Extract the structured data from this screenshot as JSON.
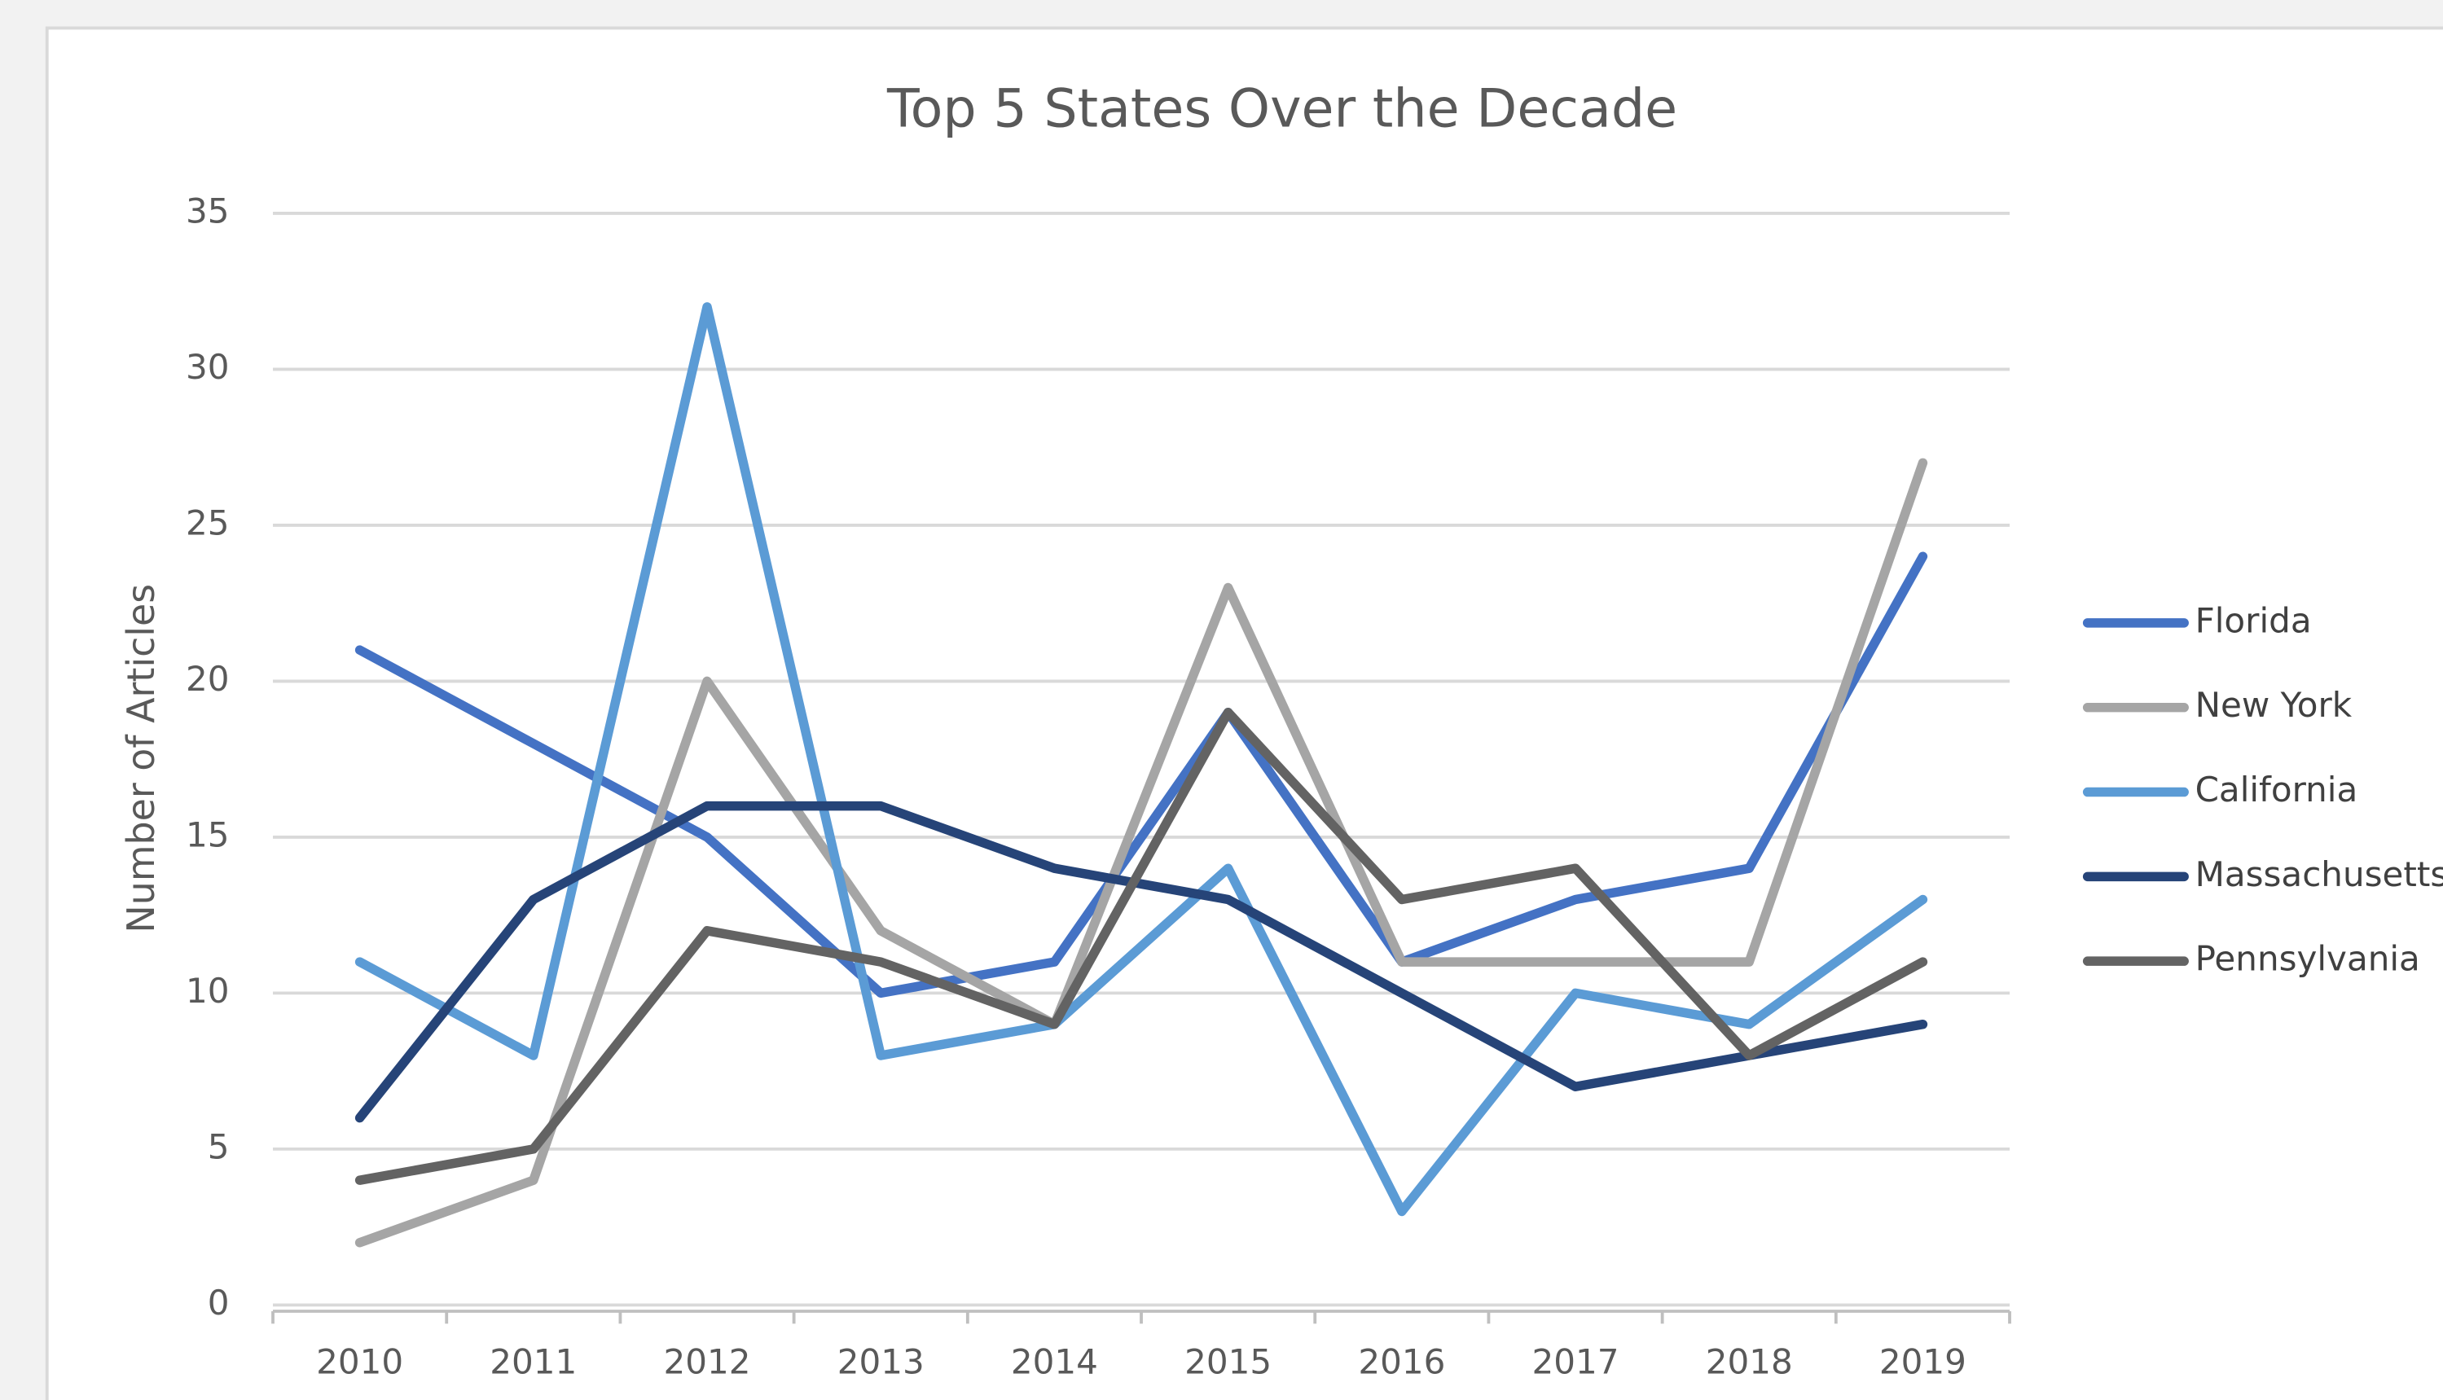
{
  "chart_data": {
    "type": "line",
    "title": "Top 5 States Over the Decade",
    "y_label": "Number of Articles",
    "categories": [
      "2010",
      "2011",
      "2012",
      "2013",
      "2014",
      "2015",
      "2016",
      "2017",
      "2018",
      "2019"
    ],
    "series": [
      {
        "name": "Florida",
        "color": "#4472c4",
        "values": [
          21,
          18,
          15,
          10,
          11,
          19,
          11,
          13,
          14,
          24
        ]
      },
      {
        "name": "New York",
        "color": "#a5a5a5",
        "values": [
          2,
          4,
          20,
          12,
          9,
          23,
          11,
          11,
          11,
          27
        ]
      },
      {
        "name": "California",
        "color": "#5b9bd5",
        "values": [
          11,
          8,
          32,
          8,
          9,
          14,
          3,
          10,
          9,
          13
        ]
      },
      {
        "name": "Massachusetts",
        "color": "#264478",
        "values": [
          6,
          13,
          16,
          16,
          14,
          13,
          10,
          7,
          8,
          9
        ]
      },
      {
        "name": "Pennsylvania",
        "color": "#636363",
        "values": [
          4,
          5,
          12,
          11,
          9,
          19,
          13,
          14,
          8,
          11
        ]
      }
    ],
    "ylim": [
      0,
      35
    ],
    "yticks": [
      0,
      5,
      10,
      15,
      20,
      25,
      30,
      35
    ],
    "grid": true,
    "legend": "right"
  }
}
